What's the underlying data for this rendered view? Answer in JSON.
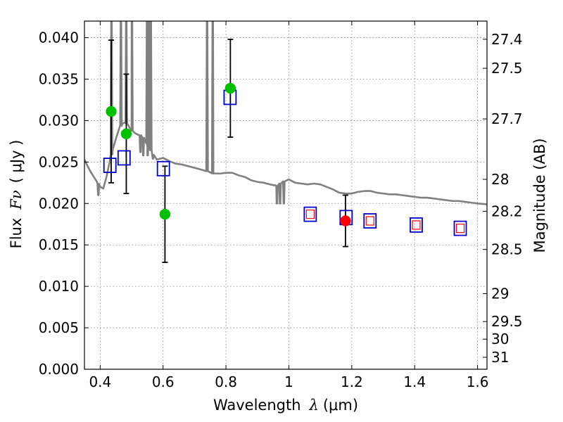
{
  "chart_data": {
    "type": "scatter",
    "xlabel": "Wavelength",
    "xlabel_symbol": "λ",
    "xlabel_unit": "(μm)",
    "ylabel": "Flux",
    "ylabel_symbol": "Fν",
    "ylabel_unit": "( μJy )",
    "y2label": "Magnitude (AB)",
    "xlim": [
      0.35,
      1.63
    ],
    "ylim": [
      0.0,
      0.042
    ],
    "grid": true,
    "x_ticks": [
      0.4,
      0.6,
      0.8,
      1.0,
      1.2,
      1.4,
      1.6
    ],
    "x_tick_labels": [
      "0.4",
      "0.6",
      "0.8",
      "1",
      "1.2",
      "1.4",
      "1.6"
    ],
    "y_ticks": [
      0.0,
      0.005,
      0.01,
      0.015,
      0.02,
      0.025,
      0.03,
      0.035,
      0.04
    ],
    "y_tick_labels": [
      "0.000",
      "0.005",
      "0.010",
      "0.015",
      "0.020",
      "0.025",
      "0.030",
      "0.035",
      "0.040"
    ],
    "y2_ticks": [
      27.4,
      27.5,
      27.7,
      28,
      28.2,
      28.5,
      29,
      29.5,
      30,
      31
    ],
    "y2_tick_labels": [
      "27.4",
      "27.5",
      "27.7",
      "28",
      "28.2",
      "28.5",
      "29",
      "29.5",
      "30",
      "31"
    ],
    "colors": {
      "model": "#808080",
      "observed_optical": "#00c000",
      "observed_nir": "#ff0000",
      "model_photometry": "#0000cc",
      "grid": "#808080",
      "errorbar": "#000000"
    },
    "model_spectrum": {
      "continuum": [
        [
          0.35,
          0.0253
        ],
        [
          0.36,
          0.0245
        ],
        [
          0.37,
          0.0238
        ],
        [
          0.38,
          0.0232
        ],
        [
          0.39,
          0.0226
        ],
        [
          0.4,
          0.022
        ],
        [
          0.41,
          0.0218
        ],
        [
          0.42,
          0.0232
        ],
        [
          0.43,
          0.025
        ],
        [
          0.44,
          0.0265
        ],
        [
          0.45,
          0.0278
        ],
        [
          0.46,
          0.029
        ],
        [
          0.47,
          0.0296
        ],
        [
          0.48,
          0.0298
        ],
        [
          0.49,
          0.0294
        ],
        [
          0.5,
          0.0288
        ],
        [
          0.51,
          0.0285
        ],
        [
          0.52,
          0.0283
        ],
        [
          0.53,
          0.0282
        ],
        [
          0.54,
          0.0278
        ],
        [
          0.55,
          0.0272
        ],
        [
          0.56,
          0.0265
        ],
        [
          0.57,
          0.0257
        ],
        [
          0.58,
          0.0253
        ],
        [
          0.59,
          0.0254
        ],
        [
          0.6,
          0.0255
        ],
        [
          0.62,
          0.0251
        ],
        [
          0.64,
          0.0248
        ],
        [
          0.66,
          0.0247
        ],
        [
          0.68,
          0.0245
        ],
        [
          0.7,
          0.0243
        ],
        [
          0.72,
          0.0241
        ],
        [
          0.74,
          0.0239
        ],
        [
          0.76,
          0.0236
        ],
        [
          0.78,
          0.0236
        ],
        [
          0.8,
          0.0237
        ],
        [
          0.82,
          0.0237
        ],
        [
          0.84,
          0.0234
        ],
        [
          0.86,
          0.0232
        ],
        [
          0.88,
          0.0228
        ],
        [
          0.9,
          0.0226
        ],
        [
          0.92,
          0.0225
        ],
        [
          0.94,
          0.0223
        ],
        [
          0.96,
          0.0221
        ],
        [
          0.98,
          0.0226
        ],
        [
          1.0,
          0.0229
        ],
        [
          1.02,
          0.0225
        ],
        [
          1.04,
          0.0224
        ],
        [
          1.06,
          0.0223
        ],
        [
          1.08,
          0.0224
        ],
        [
          1.1,
          0.0223
        ],
        [
          1.12,
          0.022
        ],
        [
          1.14,
          0.0217
        ],
        [
          1.16,
          0.0213
        ],
        [
          1.18,
          0.0212
        ],
        [
          1.2,
          0.0212
        ],
        [
          1.22,
          0.0214
        ],
        [
          1.24,
          0.0215
        ],
        [
          1.26,
          0.0215
        ],
        [
          1.28,
          0.0213
        ],
        [
          1.3,
          0.0212
        ],
        [
          1.32,
          0.0211
        ],
        [
          1.34,
          0.0211
        ],
        [
          1.36,
          0.021
        ],
        [
          1.38,
          0.0209
        ],
        [
          1.4,
          0.0208
        ],
        [
          1.42,
          0.0207
        ],
        [
          1.44,
          0.0207
        ],
        [
          1.46,
          0.0206
        ],
        [
          1.48,
          0.0205
        ],
        [
          1.5,
          0.0204
        ],
        [
          1.52,
          0.0203
        ],
        [
          1.54,
          0.0203
        ],
        [
          1.56,
          0.0202
        ],
        [
          1.58,
          0.0201
        ],
        [
          1.6,
          0.02
        ],
        [
          1.63,
          0.0199
        ]
      ],
      "emission_lines": [
        {
          "x": 0.436,
          "peak": 0.042
        },
        {
          "x": 0.466,
          "peak": 0.042
        },
        {
          "x": 0.483,
          "peak": 0.042
        },
        {
          "x": 0.501,
          "peak": 0.042
        },
        {
          "x": 0.549,
          "peak": 0.042
        },
        {
          "x": 0.555,
          "peak": 0.042
        },
        {
          "x": 0.561,
          "peak": 0.042
        },
        {
          "x": 0.74,
          "peak": 0.042
        },
        {
          "x": 0.758,
          "peak": 0.042
        }
      ],
      "absorption_lines": [
        {
          "x": 0.394,
          "depth": 0.021
        },
        {
          "x": 0.528,
          "depth": 0.0262
        },
        {
          "x": 0.537,
          "depth": 0.0258
        },
        {
          "x": 0.551,
          "depth": 0.0258
        },
        {
          "x": 0.568,
          "depth": 0.0254
        },
        {
          "x": 0.962,
          "depth": 0.02
        },
        {
          "x": 0.972,
          "depth": 0.02
        },
        {
          "x": 0.984,
          "depth": 0.02
        }
      ]
    },
    "observed": [
      {
        "x": 0.435,
        "y": 0.0311,
        "yerr": 0.0086,
        "band": "optical"
      },
      {
        "x": 0.483,
        "y": 0.0284,
        "yerr": 0.0072,
        "band": "optical"
      },
      {
        "x": 0.606,
        "y": 0.0187,
        "yerr": 0.0058,
        "band": "optical"
      },
      {
        "x": 0.814,
        "y": 0.0339,
        "yerr": 0.0059,
        "band": "optical"
      },
      {
        "x": 1.18,
        "y": 0.0179,
        "yerr": 0.0031,
        "band": "nir"
      }
    ],
    "model_photometry": [
      {
        "x": 0.431,
        "y": 0.0246
      },
      {
        "x": 0.476,
        "y": 0.0255
      },
      {
        "x": 0.601,
        "y": 0.0242
      },
      {
        "x": 0.813,
        "y": 0.0328
      },
      {
        "x": 1.068,
        "y": 0.0187
      },
      {
        "x": 1.182,
        "y": 0.0183
      },
      {
        "x": 1.258,
        "y": 0.0179
      },
      {
        "x": 1.405,
        "y": 0.0174
      },
      {
        "x": 1.545,
        "y": 0.017
      }
    ],
    "nir_observed_small": [
      {
        "x": 1.068,
        "y": 0.0187
      },
      {
        "x": 1.258,
        "y": 0.0179
      },
      {
        "x": 1.405,
        "y": 0.0174
      },
      {
        "x": 1.545,
        "y": 0.017
      }
    ]
  }
}
